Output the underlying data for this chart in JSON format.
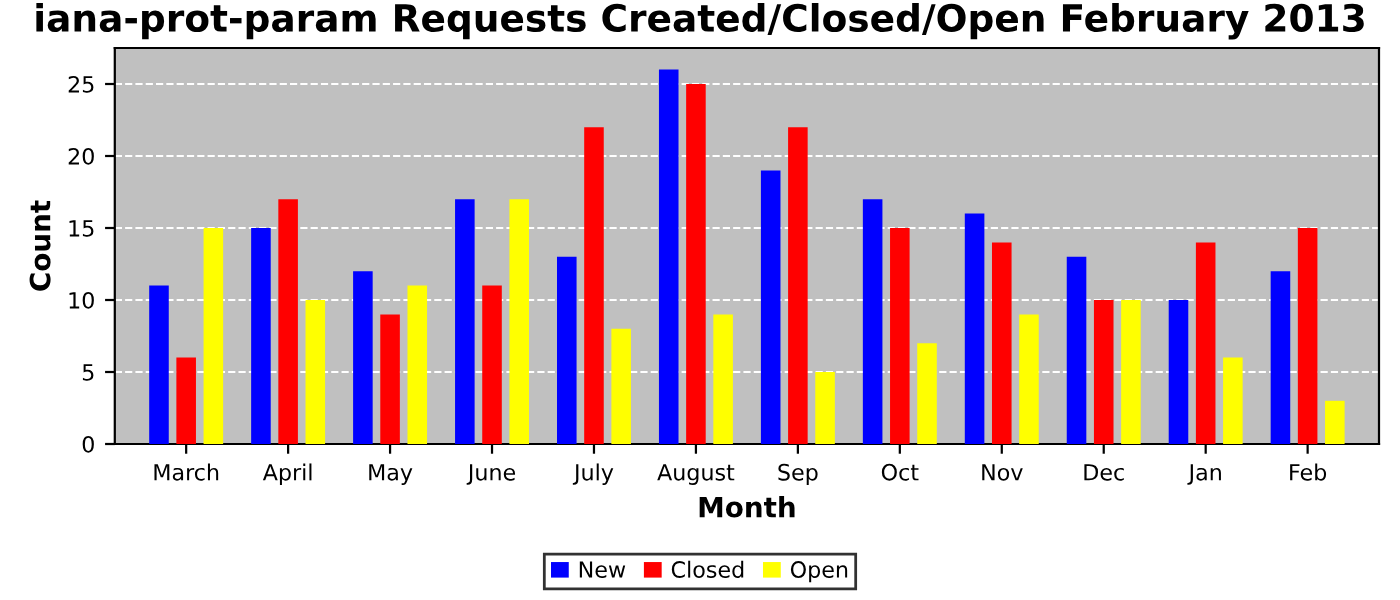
{
  "chart_data": {
    "type": "bar",
    "title": "iana-prot-param Requests Created/Closed/Open February 2013",
    "xlabel": "Month",
    "ylabel": "Count",
    "categories": [
      "March",
      "April",
      "May",
      "June",
      "July",
      "August",
      "Sep",
      "Oct",
      "Nov",
      "Dec",
      "Jan",
      "Feb"
    ],
    "series": [
      {
        "name": "New",
        "color": "#0000ff",
        "values": [
          11,
          15,
          12,
          17,
          13,
          26,
          19,
          17,
          16,
          13,
          10,
          12
        ]
      },
      {
        "name": "Closed",
        "color": "#ff0000",
        "values": [
          6,
          17,
          9,
          11,
          22,
          25,
          22,
          15,
          14,
          10,
          14,
          15
        ]
      },
      {
        "name": "Open",
        "color": "#ffff00",
        "values": [
          15,
          10,
          11,
          17,
          8,
          9,
          5,
          7,
          9,
          10,
          6,
          3
        ]
      }
    ],
    "ylim": [
      0,
      27.5
    ],
    "yticks": [
      0,
      5,
      10,
      15,
      20,
      25
    ],
    "grid": "y",
    "legend": "bottom"
  }
}
